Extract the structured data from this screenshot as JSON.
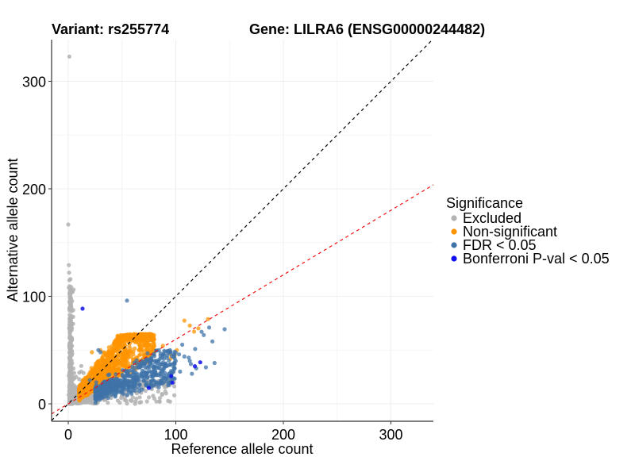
{
  "chart_data": {
    "type": "scatter",
    "title_left": "Variant: rs255774",
    "title_right": "Gene: LILRA6 (ENSG00000244482)",
    "xlabel": "Reference allele count",
    "ylabel": "Alternative allele count",
    "xlim": [
      -15.5,
      339.5
    ],
    "ylim": [
      -16.2,
      338.7
    ],
    "x_ticks": [
      0,
      100,
      200,
      300
    ],
    "x_tick_labels": [
      "0",
      "100",
      "200",
      "300"
    ],
    "y_ticks": [
      0,
      100,
      200,
      300
    ],
    "y_tick_labels": [
      "0",
      "100",
      "200",
      "300"
    ],
    "x_minor_grid": [
      50,
      150,
      250
    ],
    "y_minor_grid": [
      50,
      150,
      250
    ],
    "grid": true,
    "reference_lines": [
      {
        "name": "identity",
        "slope": 1.0,
        "intercept": 0,
        "color": "#000000",
        "style": "dashed"
      },
      {
        "name": "expected-ratio",
        "slope": 0.6,
        "intercept": 0,
        "color": "#ee1111",
        "style": "dashed"
      }
    ],
    "legend": {
      "title": "Significance",
      "position": "right",
      "entries": [
        {
          "label": "Excluded",
          "color": "#b3b3b3"
        },
        {
          "label": "Non-significant",
          "color": "#ff9400"
        },
        {
          "label": "FDR < 0.05",
          "color": "#3f73a8"
        },
        {
          "label": "Bonferroni P-val < 0.05",
          "color": "#1010ee"
        }
      ]
    },
    "series": [
      {
        "name": "Excluded",
        "color": "#b3b3b3",
        "clusters": [
          {
            "kind": "strip",
            "count": 320,
            "x_center": 1.5,
            "x_spread": 2.5,
            "y_min": 0,
            "y_max": 110
          },
          {
            "kind": "band",
            "count": 260,
            "x_min": 2,
            "x_max": 100,
            "ratio_min": 0.0,
            "ratio_max": 0.55,
            "y_cap": 22
          },
          {
            "kind": "blob",
            "count": 120,
            "x_center": 10,
            "y_center": 10,
            "x_spread": 8,
            "y_spread": 8
          }
        ],
        "points": [
          [
            1,
            323
          ],
          [
            0,
            166.8
          ],
          [
            0.5,
            129
          ],
          [
            0.8,
            122
          ],
          [
            2,
            116
          ],
          [
            1,
            115
          ],
          [
            0.5,
            108
          ],
          [
            28,
            20
          ],
          [
            12,
            30
          ],
          [
            20,
            18
          ],
          [
            30,
            15
          ],
          [
            40,
            10
          ],
          [
            50,
            8
          ],
          [
            60,
            6
          ],
          [
            75,
            6
          ],
          [
            80,
            5
          ],
          [
            85,
            2
          ]
        ]
      },
      {
        "name": "Non-significant",
        "color": "#ff9400",
        "clusters": [
          {
            "kind": "band",
            "count": 1100,
            "x_min": 10,
            "x_max": 80,
            "ratio_min": 0.55,
            "ratio_max": 1.35,
            "y_cap": 65
          }
        ],
        "points": [
          [
            55,
            63.5
          ],
          [
            113,
            72.8
          ],
          [
            117,
            67.2
          ],
          [
            121,
            70.2
          ],
          [
            108,
            77.4
          ],
          [
            130,
            78.8
          ],
          [
            95,
            46
          ],
          [
            88,
            54
          ],
          [
            52,
            52
          ],
          [
            64,
            60
          ],
          [
            48,
            56
          ],
          [
            38,
            48
          ],
          [
            30,
            50
          ],
          [
            22,
            48
          ],
          [
            95,
            42
          ],
          [
            99,
            45
          ],
          [
            101,
            50
          ],
          [
            72,
            40
          ]
        ]
      },
      {
        "name": "FDR < 0.05",
        "color": "#3f73a8",
        "clusters": [
          {
            "kind": "band",
            "count": 520,
            "x_min": 25,
            "x_max": 100,
            "ratio_min": 0.2,
            "ratio_max": 0.58,
            "y_cap": 50
          }
        ],
        "points": [
          [
            54.6,
            96
          ],
          [
            145.4,
            69.4
          ],
          [
            131,
            71
          ],
          [
            126,
            64
          ],
          [
            124,
            67
          ],
          [
            134,
            58
          ],
          [
            118,
            51
          ],
          [
            106,
            55
          ],
          [
            103,
            46
          ],
          [
            108,
            44
          ],
          [
            112,
            43
          ],
          [
            114,
            37
          ],
          [
            119,
            33
          ],
          [
            128,
            34
          ],
          [
            136,
            38
          ],
          [
            92,
            45
          ],
          [
            90,
            37
          ],
          [
            98,
            34
          ],
          [
            104,
            30
          ],
          [
            115,
            28
          ],
          [
            113,
            40
          ],
          [
            28,
            50
          ],
          [
            30,
            48
          ],
          [
            26,
            20
          ],
          [
            20,
            22
          ]
        ]
      },
      {
        "name": "Bonferroni P-val < 0.05",
        "color": "#1010ee",
        "points": [
          [
            13.3,
            88.6
          ],
          [
            117.7,
            35.0
          ],
          [
            122.7,
            38.6
          ],
          [
            95.7,
            25.8
          ],
          [
            96.9,
            19.7
          ],
          [
            74.8,
            14.8
          ]
        ]
      }
    ]
  }
}
